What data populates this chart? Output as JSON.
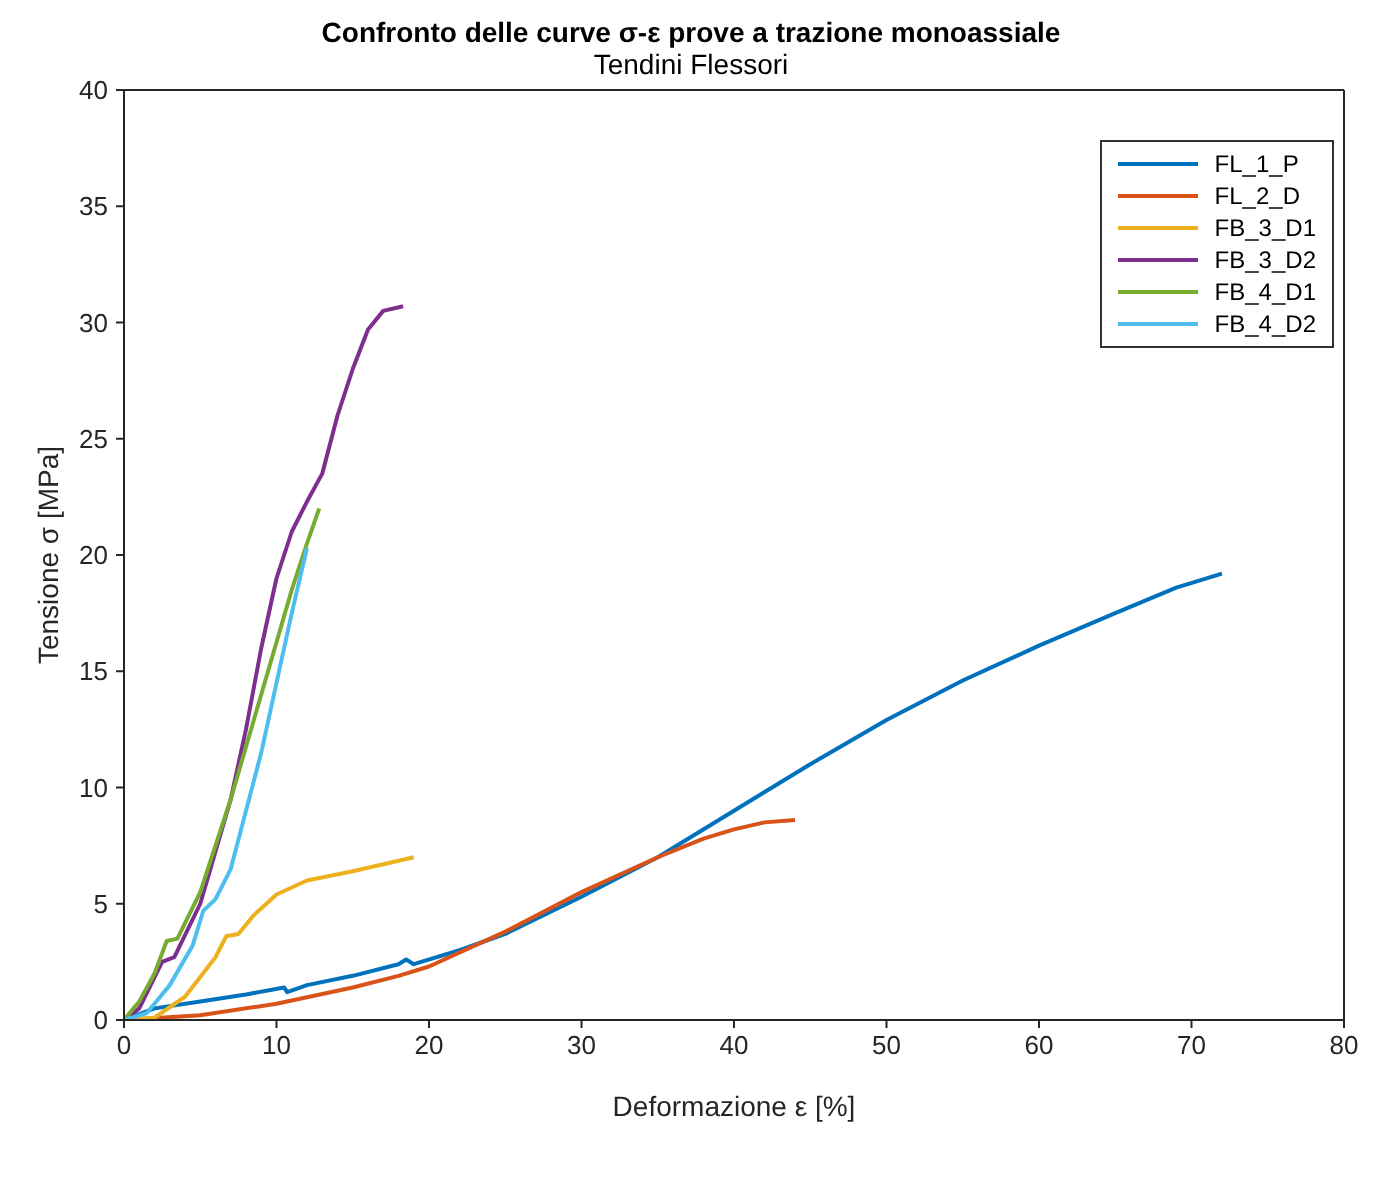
{
  "chart_data": {
    "type": "line",
    "title": "Confronto delle curve σ-ε prove a trazione monoassiale",
    "subtitle": "Tendini Flessori",
    "xlabel": "Deformazione ε [%]",
    "ylabel": "Tensione σ [MPa]",
    "xlim": [
      0,
      80
    ],
    "xticks": [
      0,
      10,
      20,
      30,
      40,
      50,
      60,
      70,
      80
    ],
    "ylim": [
      0,
      40
    ],
    "yticks": [
      0,
      5,
      10,
      15,
      20,
      25,
      30,
      35,
      40
    ],
    "grid": false,
    "legend": "top right",
    "marker": "none",
    "line_style": "solid",
    "series": [
      {
        "name": "FL_1_P",
        "color": "#0072bd",
        "x": [
          0,
          2,
          5,
          8,
          10.5,
          10.7,
          12,
          15,
          18,
          18.5,
          19,
          22,
          25,
          30,
          35,
          40,
          45,
          50,
          55,
          60,
          65,
          69,
          72
        ],
        "values": [
          0,
          0.5,
          0.8,
          1.1,
          1.4,
          1.2,
          1.5,
          1.9,
          2.4,
          2.6,
          2.4,
          3.0,
          3.7,
          5.3,
          7.0,
          9.0,
          11.0,
          12.9,
          14.6,
          16.1,
          17.5,
          18.6,
          19.2
        ]
      },
      {
        "name": "FL_2_D",
        "color": "#d95319",
        "x": [
          0,
          5,
          10,
          15,
          18,
          20,
          25,
          30,
          35,
          38,
          40,
          42,
          44
        ],
        "values": [
          0,
          0.2,
          0.7,
          1.4,
          1.9,
          2.3,
          3.8,
          5.5,
          7.0,
          7.8,
          8.2,
          8.5,
          8.6
        ]
      },
      {
        "name": "FB_3_D1",
        "color": "#edb120",
        "x": [
          0,
          2,
          4,
          6,
          6.7,
          7.5,
          8.5,
          10,
          12,
          15,
          17,
          19
        ],
        "values": [
          0,
          0.1,
          1.0,
          2.7,
          3.6,
          3.7,
          4.5,
          5.4,
          6.0,
          6.4,
          6.7,
          7.0
        ]
      },
      {
        "name": "FB_3_D2",
        "color": "#7e2f8e",
        "x": [
          0,
          1,
          2.5,
          3.3,
          5,
          7,
          8,
          9,
          10,
          11,
          12,
          13,
          14,
          15,
          16,
          17,
          18.3
        ],
        "values": [
          0,
          0.5,
          2.5,
          2.7,
          5,
          9.5,
          12.5,
          16,
          19,
          21,
          22.3,
          23.5,
          26,
          28,
          29.7,
          30.5,
          30.7
        ]
      },
      {
        "name": "FB_4_D1",
        "color": "#77ac30",
        "x": [
          0,
          1,
          2,
          2.8,
          3.5,
          5,
          7,
          9,
          11,
          12,
          12.8
        ],
        "values": [
          0,
          0.8,
          2,
          3.4,
          3.5,
          5.5,
          9.5,
          14,
          18.5,
          20.5,
          22
        ]
      },
      {
        "name": "FB_4_D2",
        "color": "#4dbeee",
        "x": [
          0,
          1.5,
          3,
          4.5,
          5.2,
          6,
          7,
          8,
          9,
          10,
          11,
          12
        ],
        "values": [
          0,
          0.3,
          1.5,
          3.2,
          4.7,
          5.2,
          6.5,
          9,
          11.5,
          14.5,
          17.5,
          20.3
        ]
      }
    ]
  }
}
